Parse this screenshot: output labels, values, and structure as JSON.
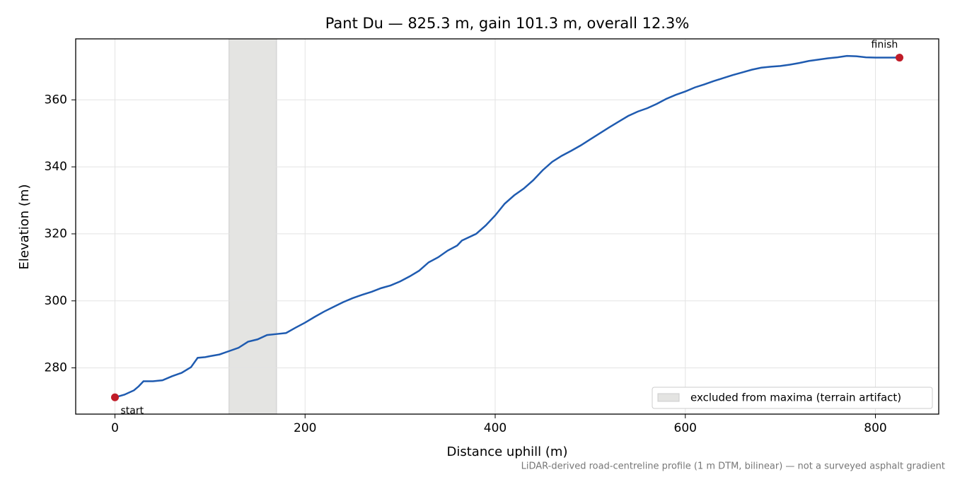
{
  "chart_data": {
    "type": "line",
    "title": "Pant Du — 825.3 m, gain 101.3 m, overall 12.3%",
    "x_label": "Distance uphill (m)",
    "y_label": "Elevation (m)",
    "footnote": "LiDAR-derived road-centreline profile (1 m DTM, bilinear) — not a surveyed asphalt gradient",
    "x": [
      0,
      10,
      20,
      25,
      30,
      40,
      50,
      60,
      70,
      80,
      87,
      95,
      100,
      110,
      120,
      130,
      140,
      150,
      160,
      170,
      180,
      190,
      200,
      210,
      220,
      230,
      240,
      250,
      260,
      270,
      280,
      290,
      300,
      310,
      320,
      330,
      340,
      350,
      360,
      365,
      380,
      390,
      400,
      410,
      420,
      430,
      440,
      450,
      460,
      470,
      480,
      490,
      500,
      510,
      520,
      530,
      540,
      550,
      560,
      570,
      580,
      590,
      600,
      610,
      620,
      630,
      640,
      650,
      660,
      670,
      680,
      690,
      700,
      710,
      720,
      730,
      740,
      750,
      760,
      770,
      780,
      790,
      800,
      810,
      825.3
    ],
    "series": [
      {
        "color": "#1f5bb0",
        "values": [
          271.2,
          272.0,
          273.3,
          274.5,
          276.0,
          276.0,
          276.3,
          277.5,
          278.5,
          280.2,
          283.0,
          283.2,
          283.5,
          284.0,
          285.0,
          286.0,
          287.8,
          288.5,
          289.8,
          290.1,
          290.4,
          292.0,
          293.5,
          295.2,
          296.8,
          298.2,
          299.6,
          300.8,
          301.8,
          302.7,
          303.8,
          304.6,
          305.8,
          307.3,
          309.0,
          311.5,
          313.0,
          315.0,
          316.5,
          318.0,
          320.0,
          322.5,
          325.5,
          329.0,
          331.5,
          333.5,
          336.0,
          339.0,
          341.5,
          343.3,
          344.8,
          346.4,
          348.2,
          350.0,
          351.8,
          353.5,
          355.2,
          356.5,
          357.5,
          358.8,
          360.3,
          361.5,
          362.5,
          363.7,
          364.6,
          365.6,
          366.5,
          367.4,
          368.2,
          369.0,
          369.6,
          369.9,
          370.1,
          370.5,
          371.0,
          371.6,
          372.0,
          372.4,
          372.7,
          373.1,
          373.0,
          372.7,
          372.6,
          372.6,
          372.6
        ]
      }
    ],
    "markers": [
      {
        "x": 0,
        "y": 271.2,
        "label": "start",
        "color": "#c01c28"
      },
      {
        "x": 825.3,
        "y": 372.6,
        "label": "finish",
        "color": "#c01c28"
      }
    ],
    "shaded_span": {
      "x": [
        120,
        170
      ],
      "label": "excluded from maxima (terrain artifact)",
      "color": "#e4e4e2"
    },
    "xlim": [
      -41.3,
      866.6
    ],
    "ylim": [
      266.2,
      378.2
    ],
    "xticks": [
      0,
      200,
      400,
      600,
      800
    ],
    "yticks": [
      280,
      300,
      320,
      340,
      360
    ],
    "grid": true,
    "legend": "lower right"
  }
}
